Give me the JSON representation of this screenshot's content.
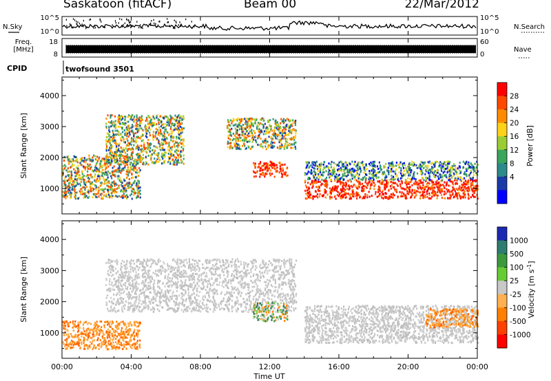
{
  "header": {
    "station": "Saskatoon (fitACF)",
    "beam": "Beam 00",
    "date": "22/Mar/2012"
  },
  "top_panels": {
    "nsky_label": "N.Sky",
    "nsky_ticks": [
      "10^5",
      "10^0"
    ],
    "nsearch_label": "N.Search",
    "nsearch_ticks": [
      "10^5",
      "10^0"
    ],
    "freq_label_1": "Freq.",
    "freq_label_2": "[MHz]",
    "freq_ticks": [
      "18",
      "8"
    ],
    "nave_label": "Nave",
    "nave_ticks": [
      "60",
      "0"
    ],
    "cpid_label": "CPID",
    "cpid_value": "twofsound 3501"
  },
  "x_axis": {
    "label": "Time UT",
    "ticks": [
      "00:00",
      "04:00",
      "08:00",
      "12:00",
      "16:00",
      "20:00",
      "00:00"
    ]
  },
  "chart_data": [
    {
      "type": "heatmap",
      "panel": "power",
      "ylabel": "Slant Range [km]",
      "yticks": [
        1000,
        2000,
        3000,
        4000
      ],
      "ylim": [
        180,
        4600
      ],
      "xlim_hours": [
        0,
        24
      ],
      "colorbar_label": "Power [dB]",
      "colorbar_ticks": [
        "28",
        "24",
        "20",
        "16",
        "12",
        "8",
        "4"
      ],
      "colorbar_colors": [
        "#ff0000",
        "#ff4a00",
        "#ff8c00",
        "#ffd21a",
        "#9acd32",
        "#3aa55c",
        "#2b8a8a",
        "#1a3aa8",
        "#0000ff"
      ],
      "echo_regions": [
        {
          "t": [
            0.0,
            4.5
          ],
          "r": [
            700,
            2100
          ],
          "level": "mid"
        },
        {
          "t": [
            2.5,
            7.0
          ],
          "r": [
            1800,
            3400
          ],
          "level": "mid"
        },
        {
          "t": [
            9.5,
            13.5
          ],
          "r": [
            2300,
            3300
          ],
          "level": "mid"
        },
        {
          "t": [
            11.0,
            13.0
          ],
          "r": [
            1400,
            1900
          ],
          "level": "high"
        },
        {
          "t": [
            14.0,
            24.0
          ],
          "r": [
            700,
            1300
          ],
          "level": "high"
        },
        {
          "t": [
            14.0,
            24.0
          ],
          "r": [
            1300,
            1900
          ],
          "level": "low"
        }
      ]
    },
    {
      "type": "heatmap",
      "panel": "velocity",
      "ylabel": "Slant Range [km]",
      "yticks": [
        1000,
        2000,
        3000,
        4000
      ],
      "ylim": [
        180,
        4600
      ],
      "xlim_hours": [
        0,
        24
      ],
      "colorbar_label": "Velocity [m s^-1]",
      "colorbar_ticks": [
        "1000",
        "500",
        "100",
        "25",
        "-25",
        "-100",
        "-500",
        "-1000"
      ],
      "colorbar_colors": [
        "#1a2ab0",
        "#2e7d6e",
        "#3c9a3c",
        "#66cc33",
        "#c8c8c8",
        "#ffb050",
        "#ff8000",
        "#ff4000",
        "#ff0000"
      ],
      "echo_regions": [
        {
          "t": [
            0.0,
            4.5
          ],
          "r": [
            500,
            1400
          ],
          "level": "neg"
        },
        {
          "t": [
            2.5,
            13.5
          ],
          "r": [
            1700,
            3400
          ],
          "level": "zero"
        },
        {
          "t": [
            11.0,
            13.0
          ],
          "r": [
            1400,
            2000
          ],
          "level": "mixed"
        },
        {
          "t": [
            14.0,
            24.0
          ],
          "r": [
            700,
            1900
          ],
          "level": "zero"
        },
        {
          "t": [
            21.0,
            24.0
          ],
          "r": [
            1200,
            1800
          ],
          "level": "neg"
        }
      ]
    }
  ]
}
